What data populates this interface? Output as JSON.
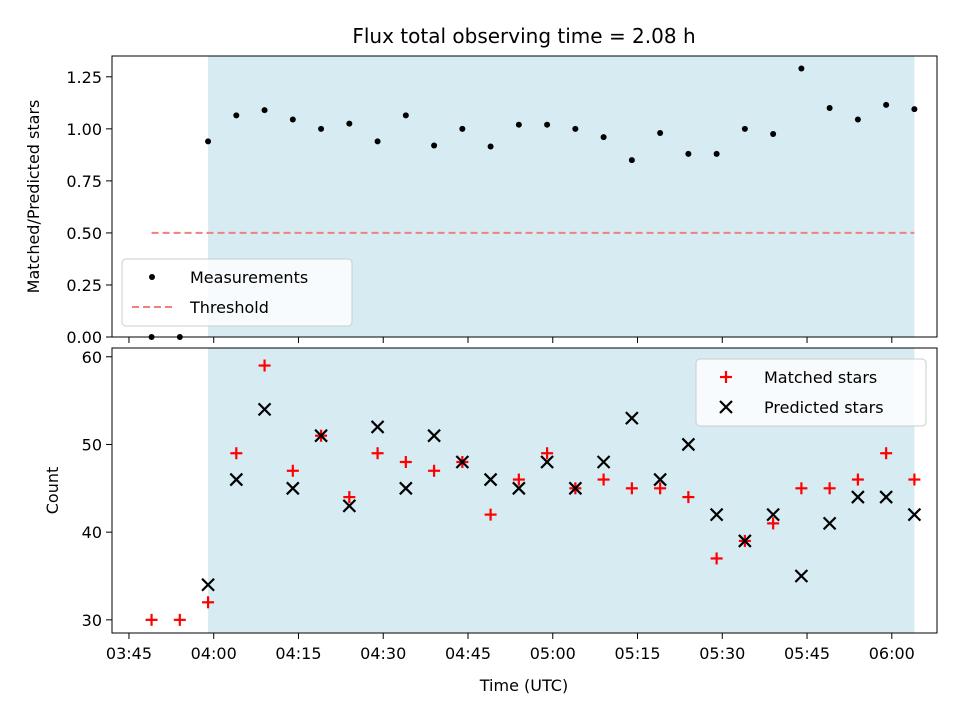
{
  "chart_data": {
    "title": "Flux total observing time = 2.08 h",
    "xlabel": "Time (UTC)",
    "x_ticks": [
      "03:45",
      "04:00",
      "04:15",
      "04:30",
      "04:45",
      "05:00",
      "05:15",
      "05:30",
      "05:45",
      "06:00"
    ],
    "x_range": [
      "03:42",
      "06:08"
    ],
    "observing_window": {
      "start": "03:59",
      "end": "06:04",
      "color": "#add8e6"
    },
    "panels": [
      {
        "type": "scatter",
        "ylabel": "Matched/Predicted stars",
        "ylim": [
          0,
          1.35
        ],
        "y_ticks": [
          0.0,
          0.25,
          0.5,
          0.75,
          1.0,
          1.25
        ],
        "legend_position": "lower-left",
        "series": [
          {
            "name": "Measurements",
            "marker": "dot",
            "color": "#000000",
            "points": [
              [
                "03:49",
                0.0
              ],
              [
                "03:54",
                0.0
              ],
              [
                "03:59",
                0.94
              ],
              [
                "04:04",
                1.065
              ],
              [
                "04:09",
                1.09
              ],
              [
                "04:14",
                1.045
              ],
              [
                "04:19",
                1.0
              ],
              [
                "04:24",
                1.025
              ],
              [
                "04:29",
                0.94
              ],
              [
                "04:34",
                1.065
              ],
              [
                "04:39",
                0.92
              ],
              [
                "04:44",
                1.0
              ],
              [
                "04:49",
                0.915
              ],
              [
                "04:54",
                1.02
              ],
              [
                "04:59",
                1.02
              ],
              [
                "05:04",
                1.0
              ],
              [
                "05:09",
                0.96
              ],
              [
                "05:14",
                0.85
              ],
              [
                "05:19",
                0.98
              ],
              [
                "05:24",
                0.88
              ],
              [
                "05:29",
                0.88
              ],
              [
                "05:34",
                1.0
              ],
              [
                "05:39",
                0.975
              ],
              [
                "05:44",
                1.29
              ],
              [
                "05:49",
                1.1
              ],
              [
                "05:54",
                1.045
              ],
              [
                "05:59",
                1.115
              ],
              [
                "06:04",
                1.095
              ]
            ]
          },
          {
            "name": "Threshold",
            "marker": "dashed-line",
            "color": "#f08080",
            "points": [
              [
                "03:49",
                0.5
              ],
              [
                "06:04",
                0.5
              ]
            ]
          }
        ]
      },
      {
        "type": "scatter",
        "ylabel": "Count",
        "ylim": [
          28.5,
          61
        ],
        "y_ticks": [
          30,
          40,
          50,
          60
        ],
        "legend_position": "top-right",
        "series": [
          {
            "name": "Matched stars",
            "marker": "plus",
            "color": "#ff0000",
            "points": [
              [
                "03:49",
                30
              ],
              [
                "03:54",
                30
              ],
              [
                "03:59",
                32
              ],
              [
                "04:04",
                49
              ],
              [
                "04:09",
                59
              ],
              [
                "04:14",
                47
              ],
              [
                "04:19",
                51
              ],
              [
                "04:24",
                44
              ],
              [
                "04:29",
                49
              ],
              [
                "04:34",
                48
              ],
              [
                "04:39",
                47
              ],
              [
                "04:44",
                48
              ],
              [
                "04:49",
                42
              ],
              [
                "04:54",
                46
              ],
              [
                "04:59",
                49
              ],
              [
                "05:04",
                45
              ],
              [
                "05:09",
                46
              ],
              [
                "05:14",
                45
              ],
              [
                "05:19",
                45
              ],
              [
                "05:24",
                44
              ],
              [
                "05:29",
                37
              ],
              [
                "05:34",
                39
              ],
              [
                "05:39",
                41
              ],
              [
                "05:44",
                45
              ],
              [
                "05:49",
                45
              ],
              [
                "05:54",
                46
              ],
              [
                "05:59",
                49
              ],
              [
                "06:04",
                46
              ]
            ]
          },
          {
            "name": "Predicted stars",
            "marker": "x",
            "color": "#000000",
            "points": [
              [
                "03:59",
                34
              ],
              [
                "04:04",
                46
              ],
              [
                "04:09",
                54
              ],
              [
                "04:14",
                45
              ],
              [
                "04:19",
                51
              ],
              [
                "04:24",
                43
              ],
              [
                "04:29",
                52
              ],
              [
                "04:34",
                45
              ],
              [
                "04:39",
                51
              ],
              [
                "04:44",
                48
              ],
              [
                "04:49",
                46
              ],
              [
                "04:54",
                45
              ],
              [
                "04:59",
                48
              ],
              [
                "05:04",
                45
              ],
              [
                "05:09",
                48
              ],
              [
                "05:14",
                53
              ],
              [
                "05:19",
                46
              ],
              [
                "05:24",
                50
              ],
              [
                "05:29",
                42
              ],
              [
                "05:34",
                39
              ],
              [
                "05:39",
                42
              ],
              [
                "05:44",
                35
              ],
              [
                "05:49",
                41
              ],
              [
                "05:54",
                44
              ],
              [
                "05:59",
                44
              ],
              [
                "06:04",
                42
              ]
            ]
          }
        ]
      }
    ]
  }
}
